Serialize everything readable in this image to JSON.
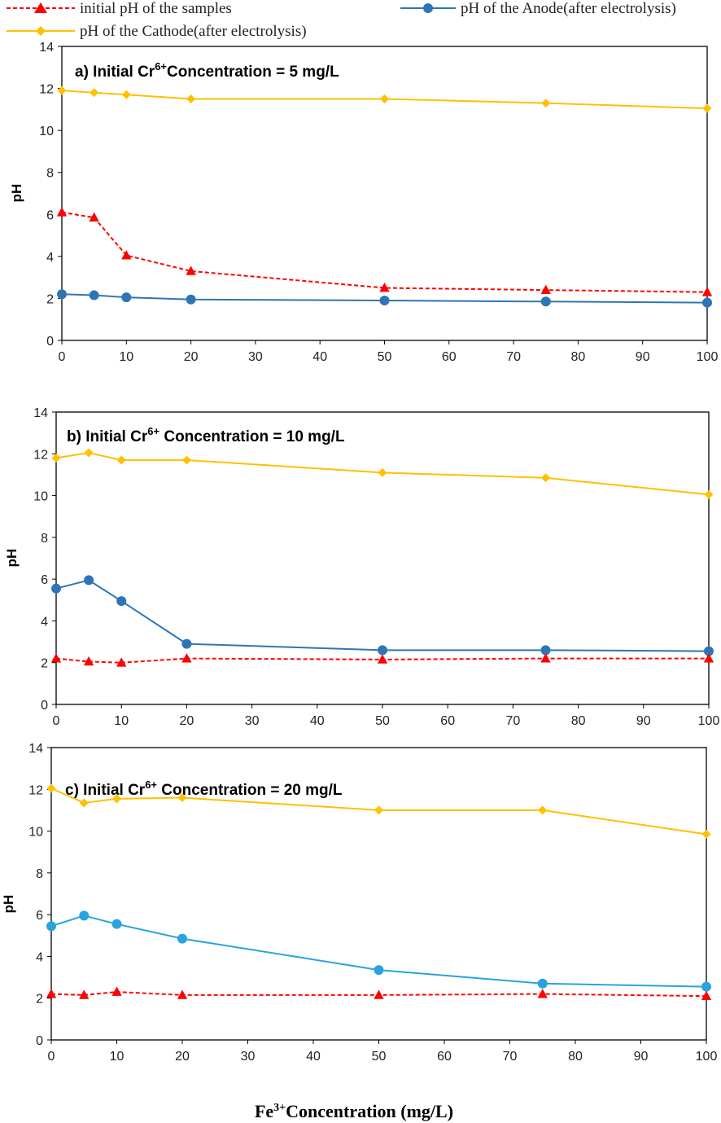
{
  "legend": {
    "initial_label": "initial pH of the samples",
    "anode_label": "pH of the Anode(after electrolysis)",
    "cathode_label": "pH of the Cathode(after electrolysis)"
  },
  "xaxis_title": {
    "prefix": "Fe",
    "sup": "3+",
    "suffix": "Concentration (mg/L)"
  },
  "colors": {
    "initial": "#ff0000",
    "anode": "#2e75b6",
    "anode_c": "#29a3dd",
    "cathode": "#ffc000",
    "axis": "#000000"
  },
  "chart_data": [
    {
      "type": "line",
      "panel": "a",
      "title_prefix": "a) Initial Cr",
      "title_sup": "6+",
      "title_suffix": "Concentration = 5 mg/L",
      "ylabel": "pH",
      "xlim": [
        0,
        100
      ],
      "ylim": [
        0,
        14
      ],
      "xticks": [
        "0",
        "10",
        "20",
        "30",
        "40",
        "50",
        "60",
        "70",
        "80",
        "90",
        "100"
      ],
      "yticks": [
        "0",
        "2",
        "4",
        "6",
        "8",
        "10",
        "12",
        "14"
      ],
      "x": [
        0,
        5,
        10,
        20,
        50,
        75,
        100
      ],
      "series": [
        {
          "name": "initial pH of the samples",
          "values": [
            6.1,
            5.85,
            4.05,
            3.3,
            2.5,
            2.4,
            2.3
          ]
        },
        {
          "name": "pH of the Anode(after electrolysis)",
          "values": [
            2.2,
            2.15,
            2.05,
            1.95,
            1.9,
            1.85,
            1.8
          ]
        },
        {
          "name": "pH of the Cathode(after electrolysis)",
          "values": [
            11.9,
            11.8,
            11.7,
            11.5,
            11.5,
            11.3,
            11.05
          ]
        }
      ]
    },
    {
      "type": "line",
      "panel": "b",
      "title_prefix": "b) Initial Cr",
      "title_sup": "6+",
      "title_suffix": " Concentration = 10 mg/L",
      "ylabel": "pH",
      "xlim": [
        0,
        100
      ],
      "ylim": [
        0,
        14
      ],
      "xticks": [
        "0",
        "10",
        "20",
        "30",
        "40",
        "50",
        "60",
        "70",
        "80",
        "90",
        "100"
      ],
      "yticks": [
        "0",
        "2",
        "4",
        "6",
        "8",
        "10",
        "12",
        "14"
      ],
      "x": [
        0,
        5,
        10,
        20,
        50,
        75,
        100
      ],
      "series": [
        {
          "name": "initial pH of the samples",
          "values": [
            2.2,
            2.05,
            2.0,
            2.2,
            2.15,
            2.2,
            2.2
          ]
        },
        {
          "name": "pH of the Anode(after electrolysis)",
          "values": [
            5.55,
            5.95,
            4.95,
            2.9,
            2.6,
            2.6,
            2.55
          ]
        },
        {
          "name": "pH of the Cathode(after electrolysis)",
          "values": [
            11.8,
            12.05,
            11.7,
            11.7,
            11.1,
            10.85,
            10.05
          ]
        }
      ]
    },
    {
      "type": "line",
      "panel": "c",
      "title_prefix": "c) Initial Cr",
      "title_sup": "6+",
      "title_suffix": " Concentration = 20 mg/L",
      "ylabel": "pH",
      "xlim": [
        0,
        100
      ],
      "ylim": [
        0,
        14
      ],
      "xticks": [
        "0",
        "10",
        "20",
        "30",
        "40",
        "50",
        "60",
        "70",
        "80",
        "90",
        "100"
      ],
      "yticks": [
        "0",
        "2",
        "4",
        "6",
        "8",
        "10",
        "12",
        "14"
      ],
      "x": [
        0,
        5,
        10,
        20,
        50,
        75,
        100
      ],
      "series": [
        {
          "name": "initial pH of the samples",
          "values": [
            2.2,
            2.15,
            2.3,
            2.15,
            2.15,
            2.2,
            2.1
          ]
        },
        {
          "name": "pH of the Anode(after electrolysis)",
          "values": [
            5.45,
            5.95,
            5.55,
            4.85,
            3.35,
            2.7,
            2.55
          ]
        },
        {
          "name": "pH of the Cathode(after electrolysis)",
          "values": [
            12.05,
            11.35,
            11.55,
            11.6,
            11.0,
            11.0,
            9.85
          ]
        }
      ]
    }
  ]
}
